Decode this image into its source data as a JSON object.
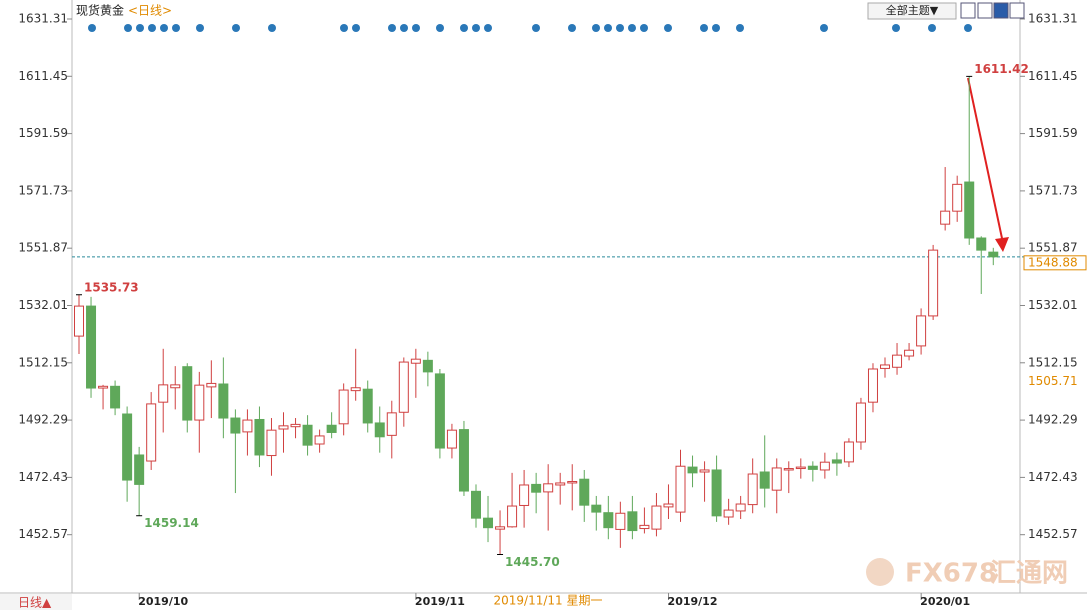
{
  "chart_data": {
    "type": "candlestick",
    "title": "现货黄金",
    "period": "<日线>",
    "theme_button": "全部主题▼",
    "period_switch": "日线▲",
    "crosshair_label": "2019/11/11 星期一",
    "watermark": [
      "FX678",
      "汇通网"
    ],
    "up_color": "#d04040",
    "down_color": "#5fa85a",
    "ylim": [
      1432.36,
      1636.16
    ],
    "yticks": [
      1452.57,
      1472.43,
      1492.29,
      1512.15,
      1532.01,
      1551.87,
      1571.73,
      1591.59,
      1611.45,
      1631.31
    ],
    "last_price": 1548.88,
    "crosshair_price": 1505.71,
    "high_low_labels": [
      {
        "value": 1611.42,
        "label": "1611.42"
      },
      {
        "value": 1535.73,
        "label": "1535.73"
      },
      {
        "value": 1459.14,
        "label": "1459.14"
      },
      {
        "value": 1445.7,
        "label": "1445.70"
      }
    ],
    "categories": [
      null,
      null,
      null,
      null,
      null,
      null,
      null,
      "2019/10",
      null,
      null,
      null,
      null,
      null,
      null,
      null,
      null,
      null,
      null,
      null,
      null,
      null,
      null,
      null,
      null,
      null,
      null,
      null,
      null,
      null,
      null,
      "2019/11",
      null,
      null,
      null,
      null,
      null,
      null,
      null,
      null,
      null,
      null,
      null,
      null,
      null,
      null,
      null,
      null,
      null,
      null,
      null,
      null,
      "2019/12",
      null,
      null,
      null,
      null,
      null,
      null,
      null,
      null,
      null,
      null,
      null,
      null,
      null,
      null,
      null,
      null,
      null,
      null,
      null,
      null,
      "2020/01",
      null,
      null,
      null,
      null
    ],
    "open": [
      1521.4,
      1531.8,
      1503.4,
      1504,
      1494.4,
      1480.2,
      1478.1,
      1498.5,
      1503.5,
      1510.8,
      1492.3,
      1503.8,
      1504.8,
      1493,
      1488.2,
      1492.5,
      1480,
      1489.2,
      1490,
      1490.5,
      1484,
      1490.5,
      1491,
      1502.5,
      1503,
      1491.3,
      1487,
      1495,
      1512,
      1513,
      1508.3,
      1482.6,
      1489,
      1467.6,
      1458.3,
      1454.5,
      1455.3,
      1462.7,
      1470,
      1467.4,
      1469.8,
      1470.5,
      1471.8,
      1462.8,
      1460.2,
      1454.4,
      1460.5,
      1454.7,
      1454.5,
      1462.2,
      1460.4,
      1476,
      1474.3,
      1475,
      1458.7,
      1460.8,
      1463,
      1474.3,
      1468,
      1475,
      1475.5,
      1476.3,
      1475,
      1478.5,
      1477.8,
      1484.7,
      1498.5,
      1510.2,
      1510.6,
      1514.5,
      1518,
      1528.4,
      1560.2,
      1564.7,
      1574.8,
      1555.4,
      1550.5
    ],
    "close": [
      1531.8,
      1503.4,
      1504,
      1496.5,
      1471.5,
      1470,
      1497.9,
      1504.5,
      1504.5,
      1492.3,
      1504.4,
      1505,
      1493,
      1487.8,
      1492.3,
      1480.2,
      1488.8,
      1490.3,
      1490.8,
      1483.6,
      1486.8,
      1488,
      1502.7,
      1503.5,
      1491.3,
      1486.5,
      1494.8,
      1512.4,
      1513.4,
      1509,
      1482.6,
      1488.8,
      1467.7,
      1458.3,
      1455,
      1455.3,
      1462.5,
      1469.8,
      1467.3,
      1470.2,
      1470.5,
      1471,
      1462.8,
      1460.4,
      1455,
      1460,
      1454,
      1455.8,
      1462.5,
      1463.2,
      1476.3,
      1474,
      1475,
      1459.1,
      1461.1,
      1463.2,
      1473.6,
      1468.7,
      1475.7,
      1475.5,
      1476,
      1475.2,
      1477.7,
      1477.4,
      1484.7,
      1498.2,
      1510,
      1511.4,
      1514.8,
      1516.5,
      1528.4,
      1551.2,
      1564.7,
      1574,
      1555.4,
      1551.2,
      1548.88
    ],
    "high": [
      1535.73,
      1535,
      1504.5,
      1506,
      1497,
      1483,
      1502,
      1517,
      1511,
      1512,
      1509,
      1513,
      1514,
      1496,
      1496,
      1497,
      1493,
      1495,
      1493,
      1494,
      1489,
      1495,
      1505,
      1517,
      1506,
      1497,
      1499,
      1514,
      1517,
      1516,
      1510,
      1491,
      1492,
      1470,
      1466,
      1461,
      1474,
      1475,
      1474,
      1477,
      1474,
      1477,
      1475,
      1466,
      1466,
      1464,
      1466,
      1462,
      1467,
      1470,
      1482,
      1480,
      1478,
      1480,
      1465,
      1466,
      1479,
      1487,
      1479,
      1478,
      1479,
      1478,
      1481,
      1481,
      1486,
      1500,
      1512,
      1514,
      1519,
      1519,
      1531,
      1553,
      1580,
      1577,
      1611.42,
      1556,
      1552
    ],
    "low": [
      1515.2,
      1500,
      1496,
      1494,
      1464,
      1459.14,
      1475,
      1488,
      1496,
      1488,
      1481,
      1493,
      1486,
      1467,
      1480,
      1476,
      1473,
      1481,
      1486,
      1480,
      1481,
      1486,
      1487,
      1499,
      1488,
      1481,
      1479,
      1490,
      1500,
      1504,
      1479,
      1479,
      1466,
      1455,
      1450,
      1445.7,
      1455,
      1455,
      1460,
      1454,
      1463,
      1461,
      1457,
      1454,
      1451,
      1448,
      1451,
      1453,
      1452,
      1458,
      1457,
      1469,
      1464,
      1457,
      1456,
      1458,
      1460,
      1462,
      1460,
      1467,
      1472,
      1471,
      1472,
      1473,
      1476,
      1482,
      1495,
      1507,
      1508,
      1513,
      1515,
      1527,
      1558,
      1561,
      1553,
      1536,
      1546
    ]
  }
}
